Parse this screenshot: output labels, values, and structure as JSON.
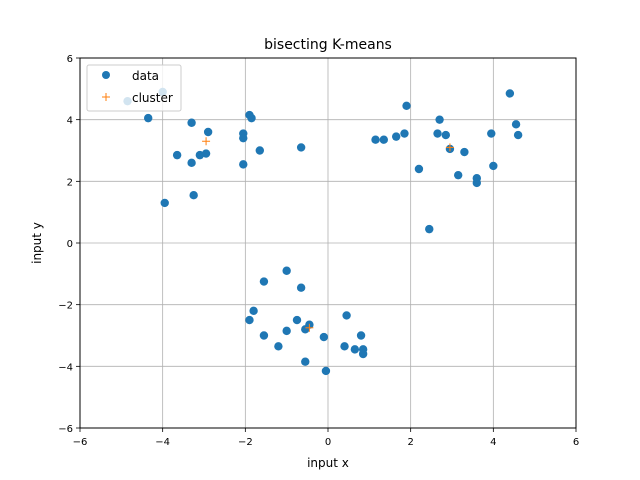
{
  "chart_data": {
    "type": "scatter",
    "title": "bisecting K-means",
    "xlabel": "input x",
    "ylabel": "input y",
    "xlim": [
      -6,
      6
    ],
    "ylim": [
      -6,
      6
    ],
    "xticks": [
      -6,
      -4,
      -2,
      0,
      2,
      4,
      6
    ],
    "yticks": [
      -6,
      -4,
      -2,
      0,
      2,
      4,
      6
    ],
    "grid": true,
    "legend_position": "upper-left",
    "series": [
      {
        "name": "data",
        "marker": "circle",
        "color": "#1f77b4",
        "points": [
          [
            -4.85,
            4.6
          ],
          [
            -4.35,
            4.05
          ],
          [
            -4.0,
            4.9
          ],
          [
            -3.95,
            1.3
          ],
          [
            -3.65,
            2.85
          ],
          [
            -3.3,
            3.9
          ],
          [
            -3.3,
            2.6
          ],
          [
            -3.25,
            1.55
          ],
          [
            -3.1,
            2.85
          ],
          [
            -2.95,
            2.9
          ],
          [
            -2.9,
            3.6
          ],
          [
            -2.05,
            3.55
          ],
          [
            -2.05,
            3.4
          ],
          [
            -2.05,
            2.55
          ],
          [
            -1.9,
            4.15
          ],
          [
            -1.85,
            4.05
          ],
          [
            -1.65,
            3.0
          ],
          [
            -0.65,
            3.1
          ],
          [
            1.15,
            3.35
          ],
          [
            1.35,
            3.35
          ],
          [
            1.65,
            3.45
          ],
          [
            1.85,
            3.55
          ],
          [
            1.9,
            4.45
          ],
          [
            2.2,
            2.4
          ],
          [
            2.45,
            0.45
          ],
          [
            2.65,
            3.55
          ],
          [
            2.7,
            4.0
          ],
          [
            2.85,
            3.5
          ],
          [
            2.95,
            3.05
          ],
          [
            3.15,
            2.2
          ],
          [
            3.3,
            2.95
          ],
          [
            3.6,
            2.1
          ],
          [
            3.6,
            1.95
          ],
          [
            3.95,
            3.55
          ],
          [
            4.0,
            2.5
          ],
          [
            4.4,
            4.85
          ],
          [
            4.55,
            3.85
          ],
          [
            4.6,
            3.5
          ],
          [
            -1.9,
            -2.5
          ],
          [
            -1.8,
            -2.2
          ],
          [
            -1.55,
            -1.25
          ],
          [
            -1.55,
            -3.0
          ],
          [
            -1.2,
            -3.35
          ],
          [
            -1.0,
            -0.9
          ],
          [
            -1.0,
            -2.85
          ],
          [
            -0.75,
            -2.5
          ],
          [
            -0.65,
            -1.45
          ],
          [
            -0.55,
            -2.8
          ],
          [
            -0.55,
            -3.85
          ],
          [
            -0.45,
            -2.65
          ],
          [
            -0.1,
            -3.05
          ],
          [
            -0.05,
            -4.15
          ],
          [
            0.4,
            -3.35
          ],
          [
            0.45,
            -2.35
          ],
          [
            0.65,
            -3.45
          ],
          [
            0.8,
            -3.0
          ],
          [
            0.85,
            -3.45
          ],
          [
            0.85,
            -3.6
          ]
        ]
      },
      {
        "name": "cluster",
        "marker": "plus",
        "color": "#ff7f0e",
        "points": [
          [
            -2.95,
            3.3
          ],
          [
            2.95,
            3.1
          ],
          [
            -0.45,
            -2.75
          ]
        ]
      }
    ]
  }
}
